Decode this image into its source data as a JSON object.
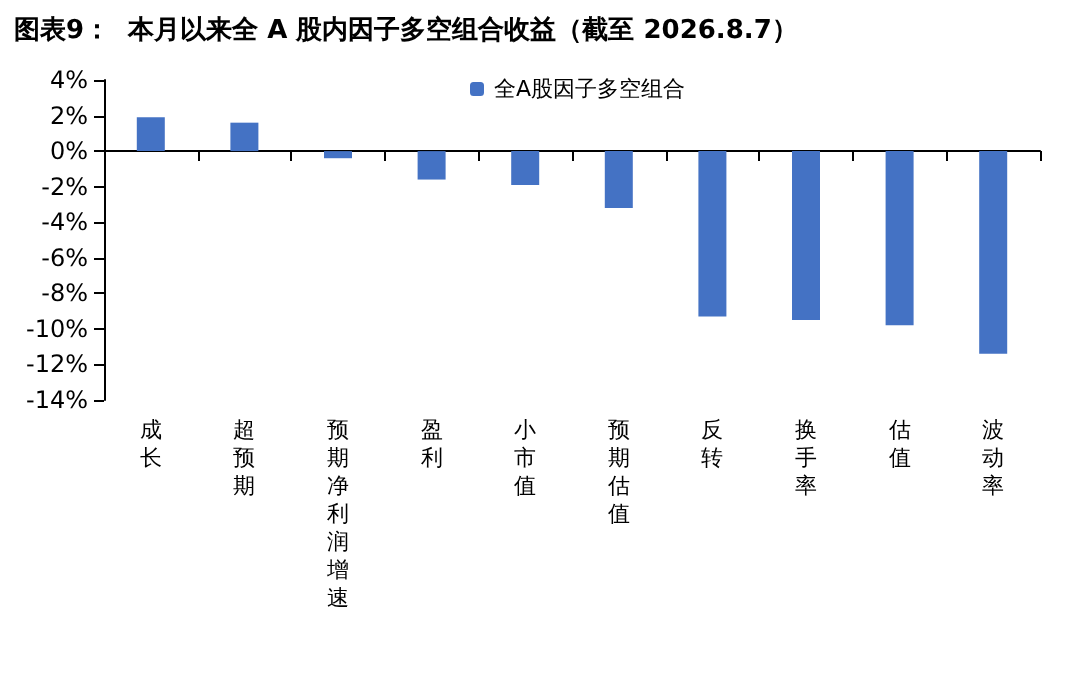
{
  "chart_data": {
    "type": "bar",
    "title": "图表9：  本月以来全 A 股内因子多空组合收益（截至 2026.8.7）",
    "categories": [
      "成长",
      "超预期",
      "预期净利润增速",
      "盈利",
      "小市值",
      "预期估值",
      "反转",
      "换手率",
      "估值",
      "波动率"
    ],
    "series": [
      {
        "name": "全A股因子多空组合",
        "color": "#4472c4",
        "values": [
          1.9,
          1.6,
          -0.4,
          -1.6,
          -1.9,
          -3.2,
          -9.3,
          -9.5,
          -9.8,
          -11.4
        ]
      }
    ],
    "ylim": [
      -14,
      4
    ],
    "yticks": [
      {
        "value": -14,
        "label": "-14%"
      },
      {
        "value": -12,
        "label": "-12%"
      },
      {
        "value": -10,
        "label": "-10%"
      },
      {
        "value": -8,
        "label": "-8%"
      },
      {
        "value": -6,
        "label": "-6%"
      },
      {
        "value": -4,
        "label": "-4%"
      },
      {
        "value": -2,
        "label": "-2%"
      },
      {
        "value": 0,
        "label": "0%"
      },
      {
        "value": 2,
        "label": "2%"
      },
      {
        "value": 4,
        "label": "4%"
      }
    ],
    "legend": "top"
  }
}
